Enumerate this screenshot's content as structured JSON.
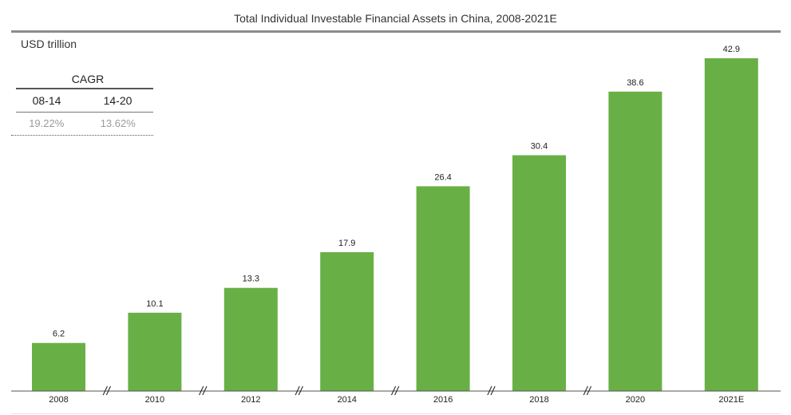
{
  "chart_data": {
    "type": "bar",
    "title": "Total Individual Investable Financial Assets in China, 2008-2021E",
    "ylabel": "USD trillion",
    "xlabel": "",
    "categories": [
      "2008",
      "2010",
      "2012",
      "2014",
      "2016",
      "2018",
      "2020",
      "2021E"
    ],
    "values": [
      6.2,
      10.1,
      13.3,
      17.9,
      26.4,
      30.4,
      38.6,
      42.9
    ],
    "value_labels": [
      "6.2",
      "10.1",
      "13.3",
      "17.9",
      "26.4",
      "30.4",
      "38.6",
      "42.9"
    ],
    "ylim": [
      0,
      46
    ],
    "bar_color": "#68b045",
    "axis_break_marker": "//",
    "grid": false,
    "legend": "none"
  },
  "cagr_table": {
    "header": "CAGR",
    "columns": [
      "08-14",
      "14-20"
    ],
    "values": [
      "19.22%",
      "13.62%"
    ]
  }
}
